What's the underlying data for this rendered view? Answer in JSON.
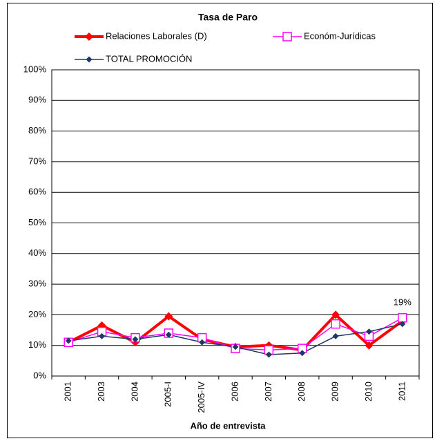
{
  "chart_data": {
    "type": "line",
    "title": "Tasa de Paro",
    "x_label": "Año de entrevista",
    "categories": [
      "2001",
      "2003",
      "2004",
      "2005-I",
      "2005-IV",
      "2006",
      "2007",
      "2008",
      "2009",
      "2010",
      "2011"
    ],
    "series": [
      {
        "name": "Relaciones Laborales (D)",
        "color": "#ff0000",
        "values": [
          11,
          16.5,
          11,
          19.5,
          12,
          9.5,
          10,
          8.5,
          20,
          10,
          18
        ]
      },
      {
        "name": "Económ-Jurídicas",
        "color": "#ff00ff",
        "values": [
          11,
          14.5,
          12.5,
          14,
          12.5,
          9,
          8.5,
          9,
          17,
          13,
          19
        ],
        "value_labels": [
          null,
          null,
          null,
          null,
          null,
          null,
          null,
          null,
          null,
          null,
          "19%"
        ]
      },
      {
        "name": "TOTAL PROMOCIÓN",
        "color": "#1f3864",
        "values": [
          11.5,
          13,
          12,
          13.5,
          11,
          9.5,
          7,
          7.5,
          13,
          14.5,
          17
        ]
      }
    ],
    "ylim": [
      0,
      100
    ],
    "yticks": [
      {
        "value": 0,
        "label": "0%"
      },
      {
        "value": 10,
        "label": "10%"
      },
      {
        "value": 20,
        "label": "20%"
      },
      {
        "value": 30,
        "label": "30%"
      },
      {
        "value": 40,
        "label": "40%"
      },
      {
        "value": 50,
        "label": "50%"
      },
      {
        "value": 60,
        "label": "60%"
      },
      {
        "value": 70,
        "label": "70%"
      },
      {
        "value": 80,
        "label": "80%"
      },
      {
        "value": 90,
        "label": "90%"
      },
      {
        "value": 100,
        "label": "100%"
      }
    ],
    "grid": true
  }
}
